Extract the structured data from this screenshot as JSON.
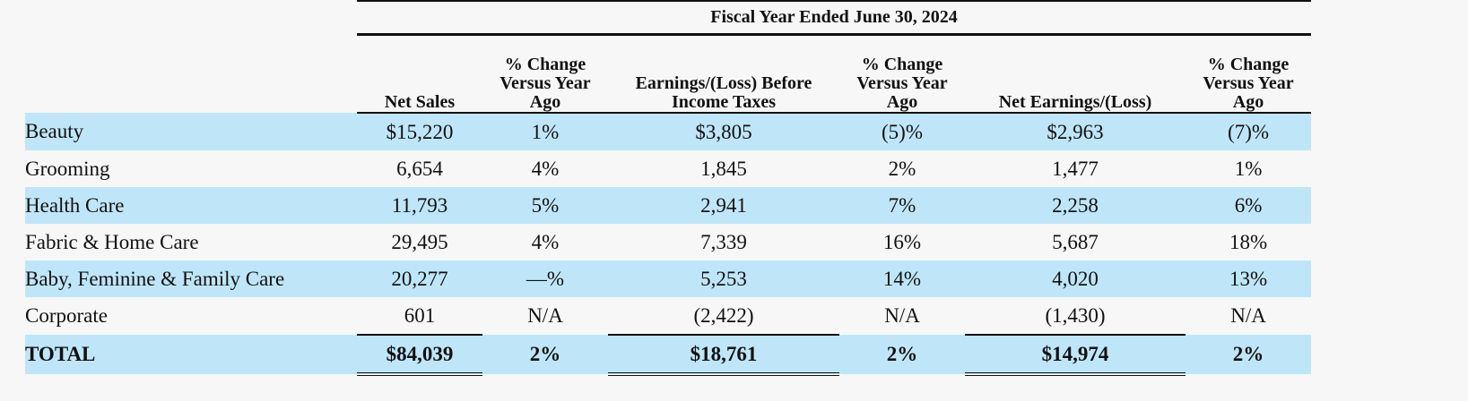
{
  "table": {
    "fiscal_header": "Fiscal Year Ended June 30, 2024",
    "columns": [
      "Net Sales",
      "% Change Versus Year Ago",
      "Earnings/(Loss) Before Income Taxes",
      "% Change Versus Year Ago",
      "Net Earnings/(Loss)",
      "% Change Versus Year Ago"
    ],
    "column_lines": [
      [
        "Net Sales"
      ],
      [
        "% Change",
        "Versus Year",
        "Ago"
      ],
      [
        "Earnings/(Loss) Before",
        "Income Taxes"
      ],
      [
        "% Change",
        "Versus Year",
        "Ago"
      ],
      [
        "Net Earnings/(Loss)"
      ],
      [
        "% Change",
        "Versus Year",
        "Ago"
      ]
    ],
    "rows": [
      {
        "label": "Beauty",
        "net_sales": "$15,220",
        "sales_change": "1%",
        "ebit": "$3,805",
        "ebit_change": "(5)%",
        "net_earnings": "$2,963",
        "ne_change": "(7)%"
      },
      {
        "label": "Grooming",
        "net_sales": "6,654",
        "sales_change": "4%",
        "ebit": "1,845",
        "ebit_change": "2%",
        "net_earnings": "1,477",
        "ne_change": "1%"
      },
      {
        "label": "Health Care",
        "net_sales": "11,793",
        "sales_change": "5%",
        "ebit": "2,941",
        "ebit_change": "7%",
        "net_earnings": "2,258",
        "ne_change": "6%"
      },
      {
        "label": "Fabric & Home Care",
        "net_sales": "29,495",
        "sales_change": "4%",
        "ebit": "7,339",
        "ebit_change": "16%",
        "net_earnings": "5,687",
        "ne_change": "18%"
      },
      {
        "label": "Baby, Feminine & Family Care",
        "net_sales": "20,277",
        "sales_change": "—%",
        "ebit": "5,253",
        "ebit_change": "14%",
        "net_earnings": "4,020",
        "ne_change": "13%"
      },
      {
        "label": "Corporate",
        "net_sales": "601",
        "sales_change": "N/A",
        "ebit": "(2,422)",
        "ebit_change": "N/A",
        "net_earnings": "(1,430)",
        "ne_change": "N/A"
      }
    ],
    "total": {
      "label": "TOTAL",
      "net_sales": "$84,039",
      "sales_change": "2%",
      "ebit": "$18,761",
      "ebit_change": "2%",
      "net_earnings": "$14,974",
      "ne_change": "2%"
    }
  }
}
